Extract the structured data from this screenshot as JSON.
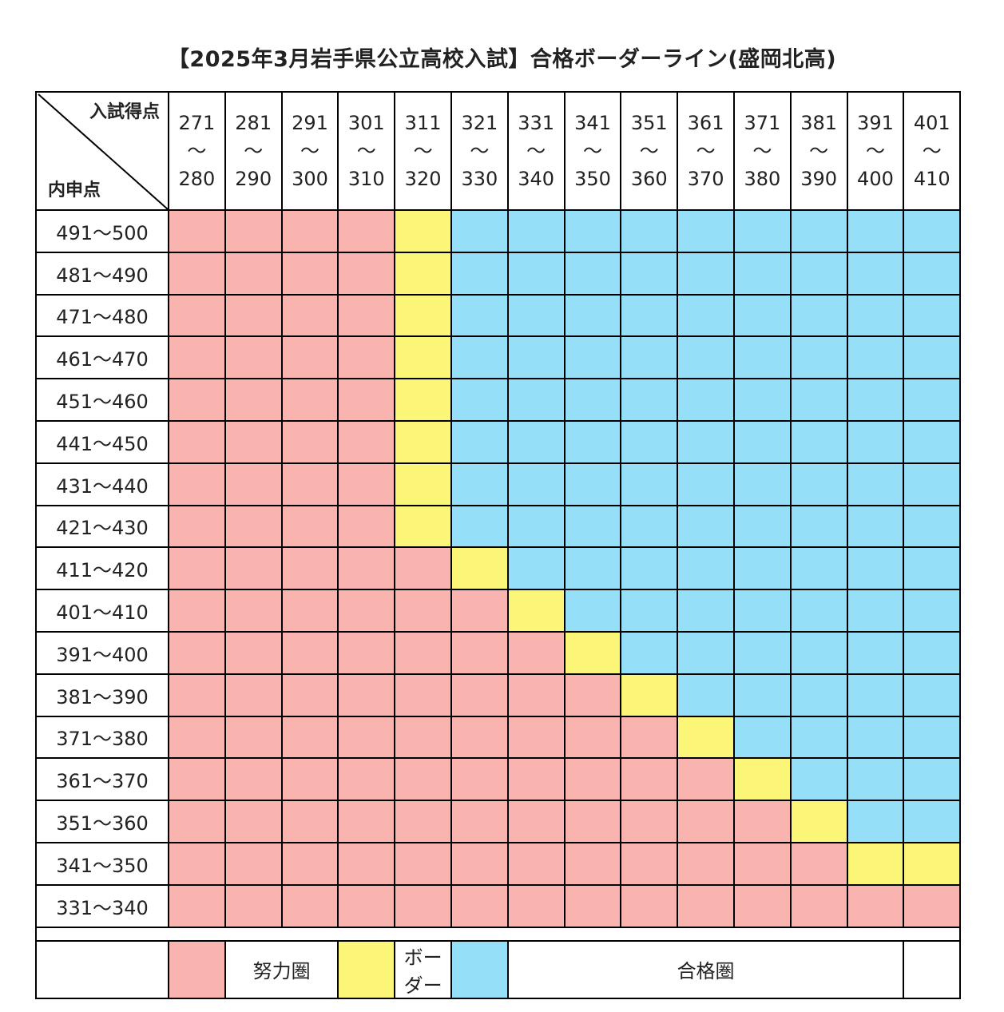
{
  "title": "【2025年3月岩手県公立高校入試】合格ボーダーライン(盛岡北高)",
  "chart_data": {
    "type": "heatmap",
    "title": "【2025年3月岩手県公立高校入試】合格ボーダーライン(盛岡北高)",
    "corner_top": "入試得点",
    "corner_bottom": "内申点",
    "range_separator": "〜",
    "columns": [
      {
        "from": "271",
        "to": "280"
      },
      {
        "from": "281",
        "to": "290"
      },
      {
        "from": "291",
        "to": "300"
      },
      {
        "from": "301",
        "to": "310"
      },
      {
        "from": "311",
        "to": "320"
      },
      {
        "from": "321",
        "to": "330"
      },
      {
        "from": "331",
        "to": "340"
      },
      {
        "from": "341",
        "to": "350"
      },
      {
        "from": "351",
        "to": "360"
      },
      {
        "from": "361",
        "to": "370"
      },
      {
        "from": "371",
        "to": "380"
      },
      {
        "from": "381",
        "to": "390"
      },
      {
        "from": "391",
        "to": "400"
      },
      {
        "from": "401",
        "to": "410"
      }
    ],
    "rows": [
      {
        "label": "491〜500",
        "border_col": 4
      },
      {
        "label": "481〜490",
        "border_col": 4
      },
      {
        "label": "471〜480",
        "border_col": 4
      },
      {
        "label": "461〜470",
        "border_col": 4
      },
      {
        "label": "451〜460",
        "border_col": 4
      },
      {
        "label": "441〜450",
        "border_col": 4
      },
      {
        "label": "431〜440",
        "border_col": 4
      },
      {
        "label": "421〜430",
        "border_col": 4
      },
      {
        "label": "411〜420",
        "border_col": 5
      },
      {
        "label": "401〜410",
        "border_col": 6
      },
      {
        "label": "391〜400",
        "border_col": 7
      },
      {
        "label": "381〜390",
        "border_col": 8
      },
      {
        "label": "371〜380",
        "border_col": 9
      },
      {
        "label": "361〜370",
        "border_col": 10
      },
      {
        "label": "351〜360",
        "border_col": 11
      },
      {
        "label": "341〜350",
        "border_col": 12,
        "border_extra_col": 13
      },
      {
        "label": "331〜340",
        "border_col": 14
      }
    ],
    "legend": [
      {
        "label": "努力圏",
        "color": "#f9b4b0"
      },
      {
        "label": "ボーダー",
        "color": "#fbf578"
      },
      {
        "label": "合格圏",
        "color": "#95e0f8"
      }
    ]
  }
}
